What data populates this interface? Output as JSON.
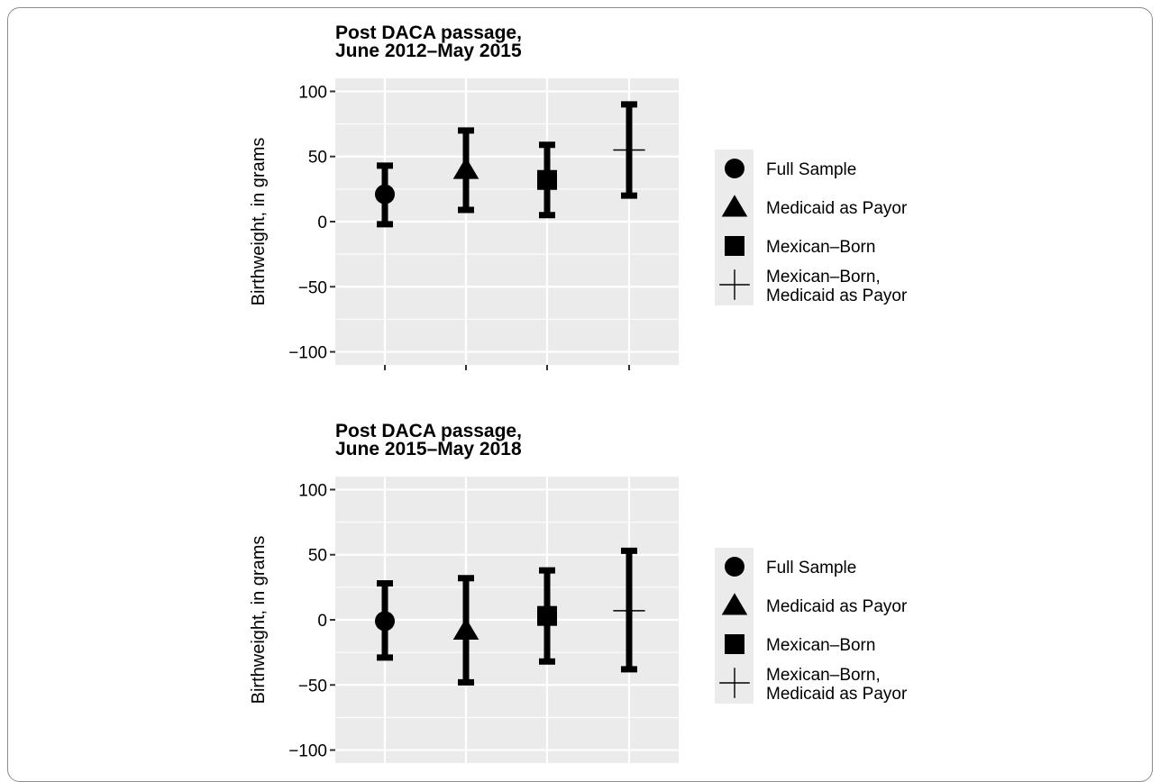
{
  "chart_data": [
    {
      "type": "errorbar",
      "title_lines": [
        "Post DACA passage,",
        "June 2012–May 2015"
      ],
      "ylabel": "Birthweight, in grams",
      "xlabel": "",
      "ylim": [
        -110,
        110
      ],
      "yticks": [
        100,
        50,
        0,
        -50,
        -100
      ],
      "ytick_labels": [
        "100",
        "50",
        "0",
        "−50",
        "−100"
      ],
      "grid": true,
      "legend_position": "right",
      "series": [
        {
          "name": "Full Sample",
          "marker": "circle",
          "estimate": 21,
          "lower": -2,
          "upper": 43
        },
        {
          "name": "Medicaid as Payor",
          "marker": "triangle",
          "estimate": 40,
          "lower": 9,
          "upper": 70
        },
        {
          "name": "Mexican–Born",
          "marker": "square",
          "estimate": 32,
          "lower": 5,
          "upper": 59
        },
        {
          "name": "Mexican–Born,\nMedicaid as Payor",
          "marker": "plus",
          "estimate": 55,
          "lower": 20,
          "upper": 90
        }
      ]
    },
    {
      "type": "errorbar",
      "title_lines": [
        "Post DACA passage,",
        "June 2015–May 2018"
      ],
      "ylabel": "Birthweight, in grams",
      "xlabel": "",
      "ylim": [
        -110,
        110
      ],
      "yticks": [
        100,
        50,
        0,
        -50,
        -100
      ],
      "ytick_labels": [
        "100",
        "50",
        "0",
        "−50",
        "−100"
      ],
      "grid": true,
      "legend_position": "right",
      "series": [
        {
          "name": "Full Sample",
          "marker": "circle",
          "estimate": -1,
          "lower": -29,
          "upper": 28
        },
        {
          "name": "Medicaid as Payor",
          "marker": "triangle",
          "estimate": -8,
          "lower": -48,
          "upper": 32
        },
        {
          "name": "Mexican–Born",
          "marker": "square",
          "estimate": 3,
          "lower": -32,
          "upper": 38
        },
        {
          "name": "Mexican–Born,\nMedicaid as Payor",
          "marker": "plus",
          "estimate": 7,
          "lower": -38,
          "upper": 53
        }
      ]
    }
  ]
}
